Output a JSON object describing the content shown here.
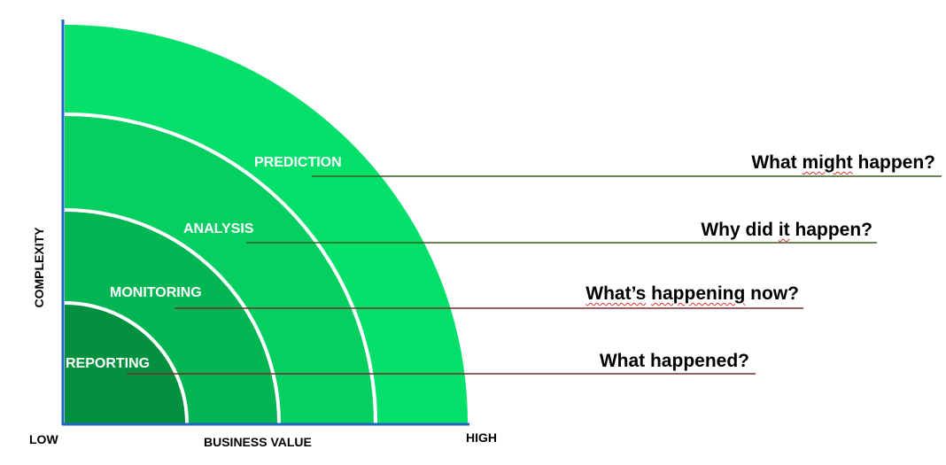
{
  "axes": {
    "y_label": "COMPLEXITY",
    "x_label": "BUSINESS VALUE",
    "x_low": "LOW",
    "x_high": "HIGH",
    "axis_color": "#1f66c0"
  },
  "bands": [
    {
      "id": "prediction",
      "label": "PREDICTION",
      "question_parts": [
        "What ",
        "might",
        " happen?"
      ],
      "fill": "#04e06a",
      "connector_color": "#3c5a1e"
    },
    {
      "id": "analysis",
      "label": "ANALYSIS",
      "question_parts": [
        "Why did ",
        "it",
        " happen?"
      ],
      "fill": "#06cf62",
      "connector_color": "#3c5a1e"
    },
    {
      "id": "monitoring",
      "label": "MONITORING",
      "question_parts": [
        "",
        "What’s",
        " ",
        "happening",
        " now?"
      ],
      "fill": "#04b553",
      "connector_color": "#7a2d2d"
    },
    {
      "id": "reporting",
      "label": "REPORTING",
      "question_parts": [
        "What happened?"
      ],
      "fill": "#03913f",
      "connector_color": "#7a2d2d"
    }
  ]
}
